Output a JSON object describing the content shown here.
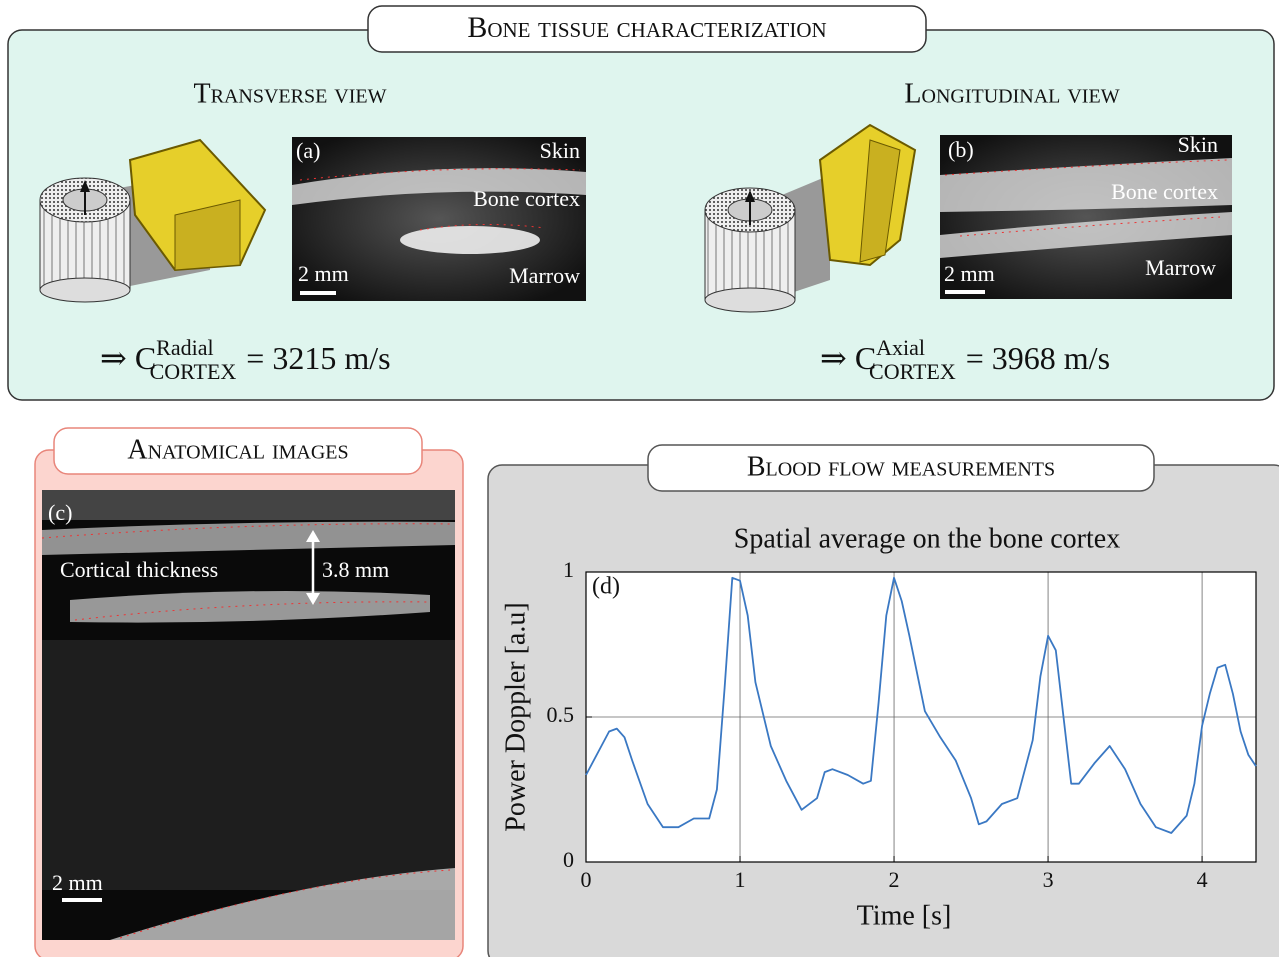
{
  "header": {
    "title": "Bone tissue characterization"
  },
  "transverse": {
    "title": "Transverse view",
    "image": {
      "panel": "(a)",
      "labels": [
        "Skin",
        "Bone cortex",
        "Marrow"
      ],
      "scale": "2 mm"
    },
    "equation": {
      "arrow": "⇒",
      "symbol": "C",
      "superscript": "Radial",
      "subscript": "CORTEX",
      "rhs": "= 3215 m/s"
    }
  },
  "longitudinal": {
    "title": "Longitudinal view",
    "image": {
      "panel": "(b)",
      "labels": [
        "Skin",
        "Bone cortex",
        "Marrow"
      ],
      "scale": "2 mm"
    },
    "equation": {
      "arrow": "⇒",
      "symbol": "C",
      "superscript": "Axial",
      "subscript": "CORTEX",
      "rhs": "= 3968 m/s"
    }
  },
  "anatomical": {
    "title": "Anatomical images",
    "panel": "(c)",
    "thickness_label": "Cortical thickness",
    "thickness": "3.8 mm",
    "scale": "2 mm"
  },
  "blood_flow": {
    "title": "Blood flow measurements"
  },
  "chart_data": {
    "type": "line",
    "title": "Spatial average on the bone cortex",
    "panel_label": "(d)",
    "x_label": "Time [s]",
    "y_label": "Power Doppler [a.u]",
    "color": "#3a78c3",
    "x": [
      0,
      0.1,
      0.15,
      0.2,
      0.25,
      0.3,
      0.4,
      0.5,
      0.6,
      0.7,
      0.8,
      0.85,
      0.9,
      0.95,
      1.0,
      1.05,
      1.1,
      1.2,
      1.3,
      1.4,
      1.5,
      1.55,
      1.6,
      1.7,
      1.8,
      1.85,
      1.9,
      1.95,
      2.0,
      2.05,
      2.1,
      2.2,
      2.3,
      2.4,
      2.5,
      2.55,
      2.6,
      2.7,
      2.8,
      2.9,
      2.95,
      3.0,
      3.05,
      3.1,
      3.15,
      3.2,
      3.3,
      3.4,
      3.5,
      3.6,
      3.7,
      3.8,
      3.9,
      3.95,
      4.0,
      4.05,
      4.1,
      4.15,
      4.2,
      4.25,
      4.3,
      4.35
    ],
    "values": [
      0.3,
      0.4,
      0.45,
      0.46,
      0.43,
      0.35,
      0.2,
      0.12,
      0.12,
      0.15,
      0.15,
      0.25,
      0.6,
      0.98,
      0.97,
      0.85,
      0.62,
      0.4,
      0.28,
      0.18,
      0.22,
      0.31,
      0.32,
      0.3,
      0.27,
      0.28,
      0.55,
      0.85,
      0.98,
      0.9,
      0.78,
      0.52,
      0.43,
      0.35,
      0.22,
      0.13,
      0.14,
      0.2,
      0.22,
      0.42,
      0.64,
      0.78,
      0.73,
      0.5,
      0.27,
      0.27,
      0.34,
      0.4,
      0.32,
      0.2,
      0.12,
      0.1,
      0.16,
      0.27,
      0.47,
      0.58,
      0.67,
      0.68,
      0.58,
      0.45,
      0.37,
      0.33
    ],
    "xlim": [
      0,
      4.35
    ],
    "ylim": [
      0,
      1
    ],
    "xticks": [
      0,
      1,
      2,
      3,
      4
    ],
    "yticks": [
      0,
      0.5,
      1
    ],
    "grid": true
  }
}
